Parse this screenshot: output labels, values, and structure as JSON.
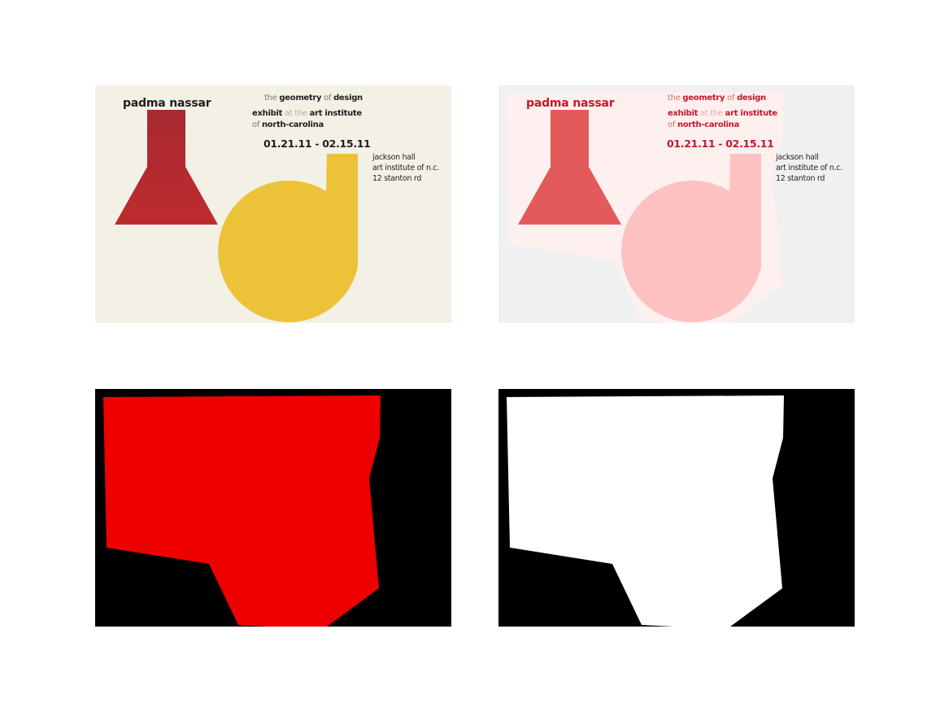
{
  "poster": {
    "artist": "padma nassar",
    "title_prefix": "the",
    "title_word1": "geometry",
    "title_mid": "of",
    "title_word2": "design",
    "exhibit_word": "exhibit",
    "exhibit_mid": "at the",
    "exhibit_place": "art institute",
    "of_word": "of",
    "state": "north-carolina",
    "dates": "01.21.11 - 02.15.11",
    "address": [
      "jackson hall",
      "art institute of n.c.",
      "12 stanton rd"
    ]
  },
  "colors": {
    "poster_background": "#f3f0e6",
    "flask": "#b22a30",
    "circle": "#ecc238",
    "overlay_background": "#f0f0f0",
    "overlay_region": "#fff0f0",
    "overlay_flask": "#e35a5a",
    "overlay_circle": "#fec1c1",
    "mask_red": "#ee0000",
    "mask_white": "#ffffff",
    "mask_black": "#000000"
  }
}
